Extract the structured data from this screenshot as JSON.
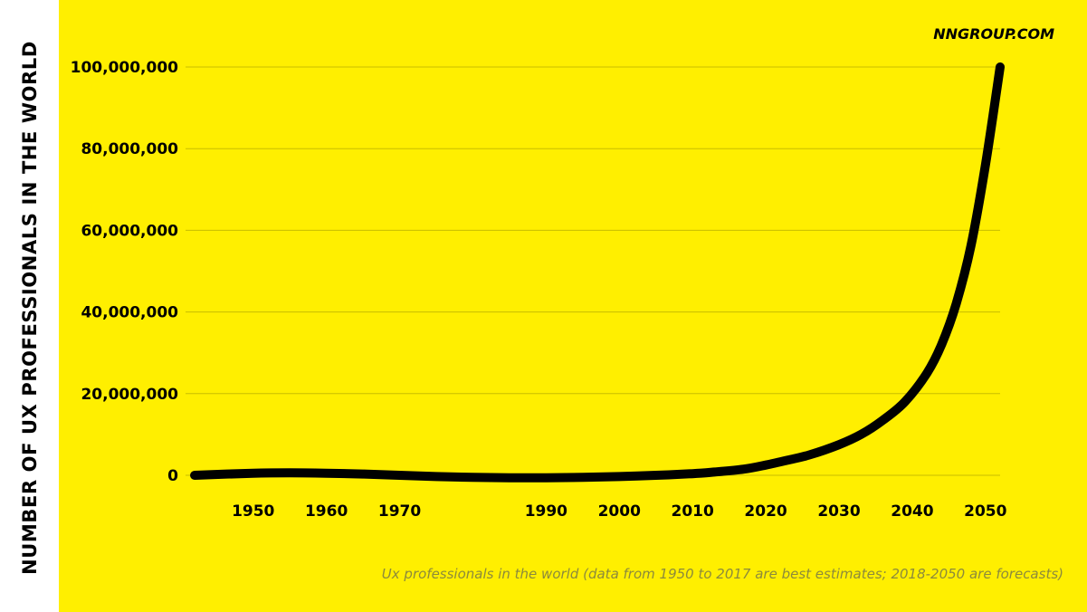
{
  "brand": "NNGROUP.COM",
  "colors": {
    "background": "#ffef00",
    "line": "#000000",
    "grid": "#c8bd00",
    "caption": "#8c8a3c"
  },
  "chart_data": {
    "type": "line",
    "ylabel": "NUMBER OF UX PROFESSIONALS IN THE WORLD",
    "xlabel": "",
    "caption": "Ux professionals in the world (data from 1950 to 2017 are best estimates; 2018-2050 are forecasts)",
    "xlim": [
      1942,
      2052
    ],
    "ylim": [
      0,
      100000000
    ],
    "x_ticks": [
      1950,
      1960,
      1970,
      1990,
      2000,
      2010,
      2020,
      2030,
      2040,
      2050
    ],
    "y_ticks": [
      0,
      20000000,
      40000000,
      60000000,
      80000000,
      100000000
    ],
    "y_tick_labels": [
      "0",
      "20,000,000",
      "40,000,000",
      "60,000,000",
      "80,000,000",
      "100,000,000"
    ],
    "grid": true,
    "series": [
      {
        "x": [
          1942,
          1950,
          1955,
          1960,
          1965,
          1970,
          1975,
          1980,
          1985,
          1990,
          1995,
          2000,
          2005,
          2010,
          2013,
          2017,
          2020,
          2023,
          2026,
          2030,
          2033,
          2036,
          2039,
          2042,
          2044,
          2046,
          2048,
          2050,
          2052
        ],
        "y": [
          0,
          500000,
          600000,
          500000,
          300000,
          0,
          -300000,
          -500000,
          -600000,
          -600000,
          -500000,
          -300000,
          0,
          400000,
          800000,
          1500000,
          2500000,
          3700000,
          5000000,
          7500000,
          10000000,
          13500000,
          18000000,
          25000000,
          32000000,
          42000000,
          56000000,
          76000000,
          100000000
        ]
      }
    ]
  }
}
